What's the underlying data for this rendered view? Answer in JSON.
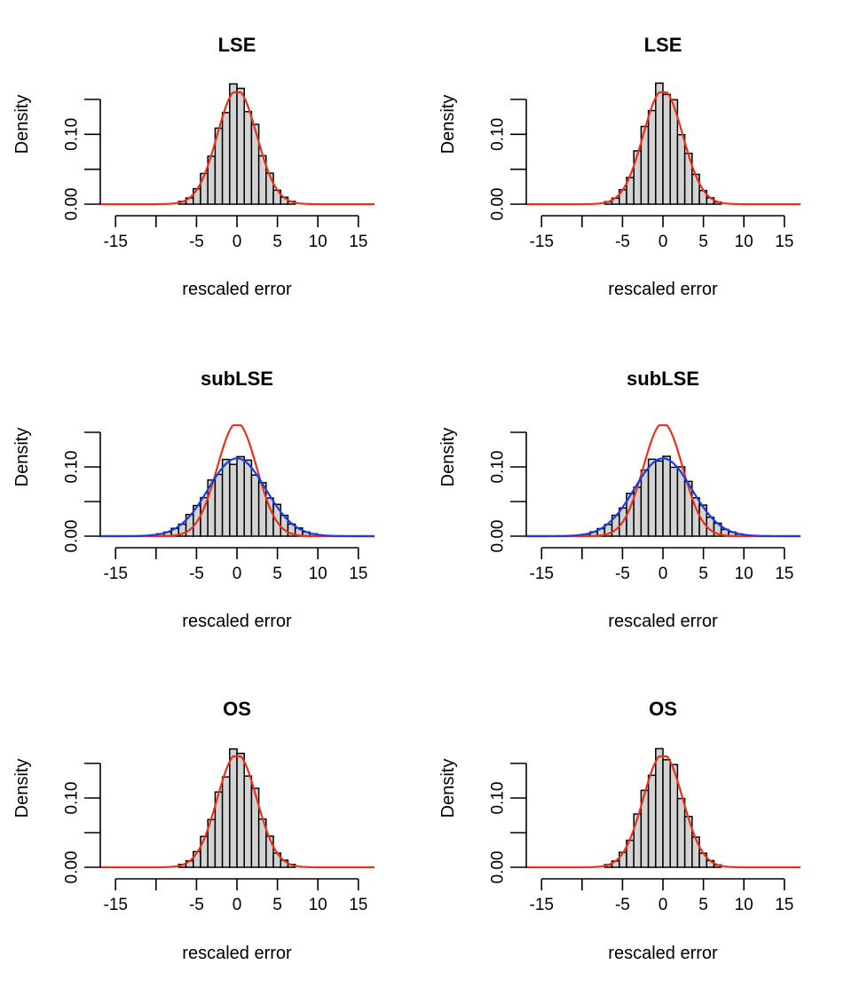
{
  "chart_data": [
    {
      "type": "bar",
      "title": "LSE",
      "xlabel": "rescaled error",
      "ylabel": "Density",
      "xlim": [
        -17,
        17
      ],
      "ylim": [
        0,
        0.15
      ],
      "xticks": [
        -15,
        -10,
        -5,
        0,
        5,
        10,
        15
      ],
      "xtick_labels": [
        "-15",
        "",
        "-5",
        "0",
        "5",
        "10",
        "15"
      ],
      "yticks": [
        0,
        0.05,
        0.1,
        0.15
      ],
      "ytick_labels": [
        "0.00",
        "",
        "0.10",
        ""
      ],
      "hist_sd": 2.46,
      "curves": [
        {
          "name": "normal density",
          "color": "#e8321e",
          "sd": 2.44
        }
      ]
    },
    {
      "type": "bar",
      "title": "LSE",
      "xlabel": "rescaled error",
      "ylabel": "Density",
      "xlim": [
        -17,
        17
      ],
      "ylim": [
        0,
        0.15
      ],
      "xticks": [
        -15,
        -10,
        -5,
        0,
        5,
        10,
        15
      ],
      "xtick_labels": [
        "-15",
        "",
        "-5",
        "0",
        "5",
        "10",
        "15"
      ],
      "yticks": [
        0,
        0.05,
        0.1,
        0.15
      ],
      "ytick_labels": [
        "0.00",
        "",
        "0.10",
        ""
      ],
      "hist_sd": 2.42,
      "curves": [
        {
          "name": "normal density",
          "color": "#e8321e",
          "sd": 2.44
        }
      ]
    },
    {
      "type": "bar",
      "title": "subLSE",
      "xlabel": "rescaled error",
      "ylabel": "Density",
      "xlim": [
        -17,
        17
      ],
      "ylim": [
        0,
        0.15
      ],
      "xticks": [
        -15,
        -10,
        -5,
        0,
        5,
        10,
        15
      ],
      "xtick_labels": [
        "-15",
        "",
        "-5",
        "0",
        "5",
        "10",
        "15"
      ],
      "yticks": [
        0,
        0.05,
        0.1,
        0.15
      ],
      "ytick_labels": [
        "0.00",
        "",
        "0.10",
        ""
      ],
      "hist_sd": 3.55,
      "curves": [
        {
          "name": "normal density",
          "color": "#e8321e",
          "sd": 2.44
        },
        {
          "name": "wider normal density",
          "color": "#1a3fe0",
          "sd": 3.55
        }
      ]
    },
    {
      "type": "bar",
      "title": "subLSE",
      "xlabel": "rescaled error",
      "ylabel": "Density",
      "xlim": [
        -17,
        17
      ],
      "ylim": [
        0,
        0.15
      ],
      "xticks": [
        -15,
        -10,
        -5,
        0,
        5,
        10,
        15
      ],
      "xtick_labels": [
        "-15",
        "",
        "-5",
        "0",
        "5",
        "10",
        "15"
      ],
      "yticks": [
        0,
        0.05,
        0.1,
        0.15
      ],
      "ytick_labels": [
        "0.00",
        "",
        "0.10",
        ""
      ],
      "hist_sd": 3.5,
      "curves": [
        {
          "name": "normal density",
          "color": "#e8321e",
          "sd": 2.44
        },
        {
          "name": "wider normal density",
          "color": "#1a3fe0",
          "sd": 3.55
        }
      ]
    },
    {
      "type": "bar",
      "title": "OS",
      "xlabel": "rescaled error",
      "ylabel": "Density",
      "xlim": [
        -17,
        17
      ],
      "ylim": [
        0,
        0.15
      ],
      "xticks": [
        -15,
        -10,
        -5,
        0,
        5,
        10,
        15
      ],
      "xtick_labels": [
        "-15",
        "",
        "-5",
        "0",
        "5",
        "10",
        "15"
      ],
      "yticks": [
        0,
        0.05,
        0.1,
        0.15
      ],
      "ytick_labels": [
        "0.00",
        "",
        "0.10",
        ""
      ],
      "hist_sd": 2.48,
      "curves": [
        {
          "name": "normal density",
          "color": "#e8321e",
          "sd": 2.44
        }
      ]
    },
    {
      "type": "bar",
      "title": "OS",
      "xlabel": "rescaled error",
      "ylabel": "Density",
      "xlim": [
        -17,
        17
      ],
      "ylim": [
        0,
        0.15
      ],
      "xticks": [
        -15,
        -10,
        -5,
        0,
        5,
        10,
        15
      ],
      "xtick_labels": [
        "-15",
        "",
        "-5",
        "0",
        "5",
        "10",
        "15"
      ],
      "yticks": [
        0,
        0.05,
        0.1,
        0.15
      ],
      "ytick_labels": [
        "0.00",
        "",
        "0.10",
        ""
      ],
      "hist_sd": 2.45,
      "curves": [
        {
          "name": "normal density",
          "color": "#e8321e",
          "sd": 2.44
        }
      ]
    }
  ],
  "style": {
    "bar_fill": "#d3d3d3",
    "bar_stroke": "#000000",
    "axis_color": "#000000"
  }
}
